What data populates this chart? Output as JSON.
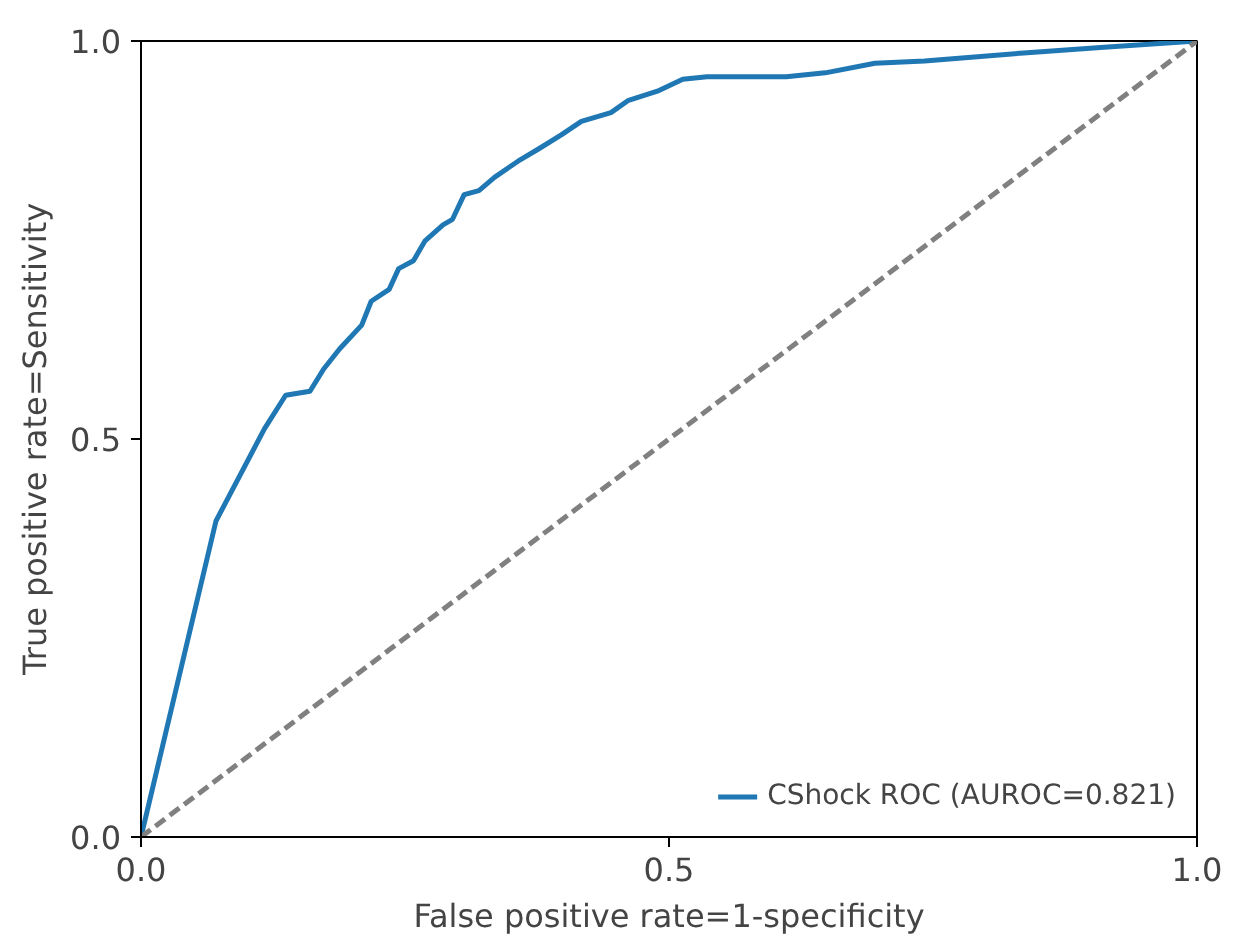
{
  "chart_data": {
    "type": "line",
    "xlabel": "False positive rate=1-specificity",
    "ylabel": "True positive rate=Sensitivity",
    "xlim": [
      0,
      1
    ],
    "ylim": [
      0,
      1
    ],
    "xticks": [
      {
        "value": 0,
        "label": "0.0"
      },
      0.5,
      {
        "value": 1,
        "label": "1.0"
      }
    ],
    "yticks": [
      {
        "value": 0,
        "label": "0.0"
      },
      0.5,
      {
        "value": 1,
        "label": "1.0"
      }
    ],
    "grid": false,
    "legend": "bottom right",
    "marker": "none",
    "series": [
      {
        "name": "CShock ROC (AUROC=0.821)",
        "color": "#1f77b4",
        "line_style": "solid",
        "x": [
          0,
          0.071,
          0.117,
          0.137,
          0.16,
          0.173,
          0.188,
          0.209,
          0.218,
          0.235,
          0.244,
          0.258,
          0.269,
          0.286,
          0.295,
          0.306,
          0.32,
          0.335,
          0.357,
          0.376,
          0.398,
          0.417,
          0.445,
          0.461,
          0.489,
          0.513,
          0.536,
          0.611,
          0.648,
          0.695,
          0.742,
          0.836,
          0.912,
          1
        ],
        "values": [
          0,
          0.397,
          0.513,
          0.555,
          0.56,
          0.588,
          0.613,
          0.643,
          0.673,
          0.688,
          0.714,
          0.724,
          0.749,
          0.769,
          0.776,
          0.807,
          0.812,
          0.829,
          0.849,
          0.864,
          0.882,
          0.899,
          0.91,
          0.925,
          0.937,
          0.952,
          0.955,
          0.955,
          0.96,
          0.972,
          0.975,
          0.985,
          0.992,
          1
        ]
      },
      {
        "color": "#808080",
        "line_style": "dashed",
        "x": [
          0,
          1
        ],
        "values": [
          0,
          1
        ]
      }
    ]
  }
}
